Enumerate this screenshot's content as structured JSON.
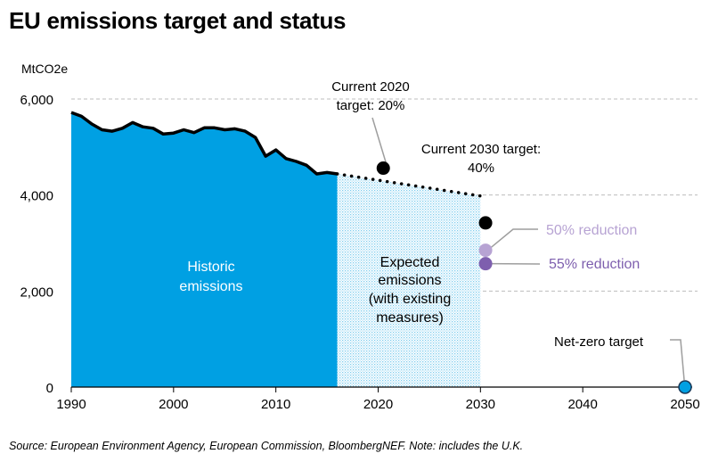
{
  "chart_data": {
    "type": "area",
    "title": "EU emissions target and status",
    "ylabel": "MtCO2e",
    "xlabel": "",
    "xlim": [
      1990,
      2050
    ],
    "ylim": [
      0,
      6000
    ],
    "x_ticks": [
      "1990",
      "2000",
      "2010",
      "2020",
      "2030",
      "2040",
      "2050"
    ],
    "y_ticks": [
      "0",
      "2,000",
      "4,000",
      "6,000"
    ],
    "grid": "horizontal dashed",
    "historic": {
      "label": "Historic emissions",
      "color": "#00a0e3",
      "x": [
        1990,
        1991,
        1992,
        1993,
        1994,
        1995,
        1996,
        1997,
        1998,
        1999,
        2000,
        2001,
        2002,
        2003,
        2004,
        2005,
        2006,
        2007,
        2008,
        2009,
        2010,
        2011,
        2012,
        2013,
        2014,
        2015,
        2016
      ],
      "y": [
        5720,
        5640,
        5480,
        5360,
        5330,
        5390,
        5510,
        5420,
        5390,
        5270,
        5290,
        5360,
        5300,
        5400,
        5400,
        5360,
        5380,
        5330,
        5200,
        4810,
        4940,
        4760,
        4700,
        4620,
        4440,
        4470,
        4440
      ]
    },
    "expected": {
      "label": "Expected emissions (with existing measures)",
      "color": "#00a0e3",
      "x": [
        2016,
        2030
      ],
      "y": [
        4440,
        3980
      ]
    },
    "targets": [
      {
        "label": "Current 2020 target: 20%",
        "year": 2020.5,
        "value": 4560,
        "color": "#000000"
      },
      {
        "label": "Current 2030 target: 40%",
        "year": 2030.5,
        "value": 3420,
        "color": "#000000"
      },
      {
        "label": "50% reduction",
        "year": 2030.5,
        "value": 2850,
        "color": "#b7a3d3"
      },
      {
        "label": "55% reduction",
        "year": 2030.5,
        "value": 2570,
        "color": "#7e5fae"
      },
      {
        "label": "Net-zero target",
        "year": 2050,
        "value": 0,
        "color": "#00a0e3"
      }
    ],
    "source": "Source: European Environment Agency, European Commission, BloombergNEF. Note: includes the U.K."
  }
}
